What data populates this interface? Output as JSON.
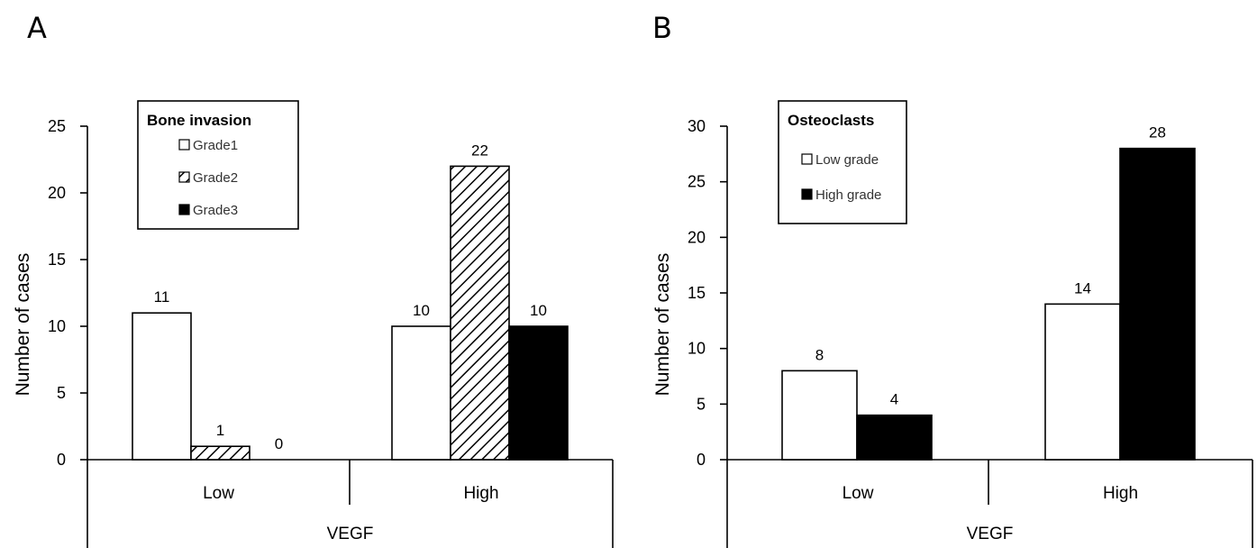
{
  "chart_data": [
    {
      "panel": "A",
      "type": "bar",
      "categories": [
        "Low",
        "High"
      ],
      "group_label": "VEGF",
      "ylabel": "Number of cases",
      "ylim": [
        0,
        25
      ],
      "yticks": [
        0,
        5,
        10,
        15,
        20,
        25
      ],
      "grid": false,
      "legend": {
        "title": "Bone invasion",
        "position": "top-left"
      },
      "series": [
        {
          "name": "Grade1",
          "pattern": "white",
          "values": [
            11,
            10
          ],
          "labels": [
            "11",
            "10"
          ]
        },
        {
          "name": "Grade2",
          "pattern": "hatched",
          "values": [
            1,
            22
          ],
          "labels": [
            "1",
            "22"
          ]
        },
        {
          "name": "Grade3",
          "pattern": "black",
          "values": [
            0,
            10
          ],
          "labels": [
            "0",
            "10"
          ]
        }
      ]
    },
    {
      "panel": "B",
      "type": "bar",
      "categories": [
        "Low",
        "High"
      ],
      "group_label": "VEGF",
      "ylabel": "Number of cases",
      "ylim": [
        0,
        30
      ],
      "yticks": [
        0,
        5,
        10,
        15,
        20,
        25,
        30
      ],
      "grid": false,
      "legend": {
        "title": "Osteoclasts",
        "position": "top-left"
      },
      "series": [
        {
          "name": "Low grade",
          "pattern": "white",
          "values": [
            8,
            14
          ],
          "labels": [
            "8",
            "14"
          ]
        },
        {
          "name": "High grade",
          "pattern": "black",
          "values": [
            4,
            28
          ],
          "labels": [
            "4",
            "28"
          ]
        }
      ]
    }
  ]
}
